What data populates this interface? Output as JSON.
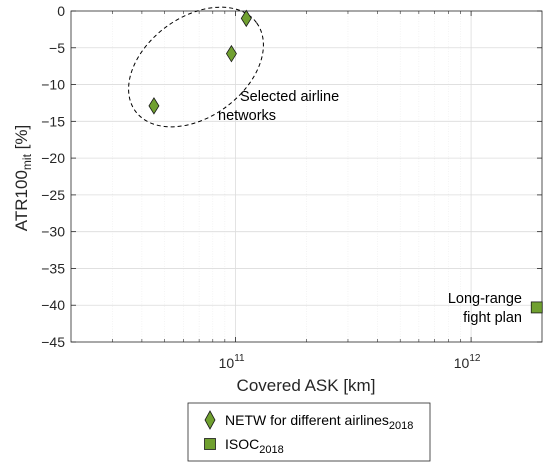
{
  "chart_data": {
    "type": "scatter",
    "xscale": "log",
    "xlim": [
      20000000000,
      2000000000000
    ],
    "ylim": [
      -45,
      0
    ],
    "xlabel": "Covered ASK [km]",
    "ylabel_main": "ATR100",
    "ylabel_sub": "mit",
    "ylabel_unit": " [%]",
    "xticks": [
      {
        "value": 100000000000,
        "base": "10",
        "exp": "11"
      },
      {
        "value": 1000000000000,
        "base": "10",
        "exp": "12"
      }
    ],
    "yticks": [
      0,
      -5,
      -10,
      -15,
      -20,
      -25,
      -30,
      -35,
      -40,
      -45
    ],
    "grid": true,
    "series": [
      {
        "name": "NETW for different airlines",
        "name_sub": "2018",
        "marker": "diamond",
        "color": "#70a030",
        "points": [
          {
            "x": 45000000000,
            "y": -12.9
          },
          {
            "x": 96000000000,
            "y": -5.8
          },
          {
            "x": 111000000000,
            "y": -1.0
          }
        ]
      },
      {
        "name": "ISOC",
        "name_sub": "2018",
        "marker": "square",
        "color": "#70a030",
        "points": [
          {
            "x": 1900000000000,
            "y": -40.3
          }
        ]
      }
    ],
    "annotations": [
      {
        "lines": [
          "Selected airline",
          "networks"
        ]
      },
      {
        "lines": [
          "Long-range",
          "fight plan"
        ]
      }
    ],
    "legend_position": "bottom-outside"
  }
}
